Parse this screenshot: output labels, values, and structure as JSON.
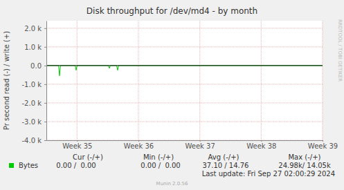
{
  "chart_data": {
    "type": "line",
    "title": "Disk throughput for /dev/md4 - by month",
    "y_label": "Pr second read (-) / write (+)",
    "x": [
      34.5,
      34.7,
      34.714,
      34.73,
      34.97,
      34.985,
      35.0,
      35.51,
      35.526,
      35.54,
      35.645,
      35.661,
      35.675,
      39.0
    ],
    "series": [
      {
        "name": "Bytes",
        "color": "#00cc00",
        "values": [
          0,
          0,
          -550,
          0,
          0,
          -250,
          0,
          0,
          -150,
          0,
          0,
          -250,
          0,
          0
        ]
      }
    ],
    "xlim": [
      34.5,
      39.0
    ],
    "xticks": [
      {
        "value": 35,
        "label": "Week 35"
      },
      {
        "value": 36,
        "label": "Week 36"
      },
      {
        "value": 37,
        "label": "Week 37"
      },
      {
        "value": 38,
        "label": "Week 38"
      },
      {
        "value": 39,
        "label": "Week 39"
      }
    ],
    "ylim": [
      -4000,
      2400
    ],
    "yticks": [
      {
        "value": 2000,
        "label": "2.0 k"
      },
      {
        "value": 1000,
        "label": "1.0 k"
      },
      {
        "value": 0,
        "label": "0.0"
      },
      {
        "value": -1000,
        "label": "-1.0 k"
      },
      {
        "value": -2000,
        "label": "-2.0 k"
      },
      {
        "value": -3000,
        "label": "-3.0 k"
      },
      {
        "value": -4000,
        "label": "-4.0 k"
      }
    ],
    "grid": true,
    "legend": "bottom",
    "stats": {
      "headers": [
        "Cur (-/+)",
        "Min (-/+)",
        "Avg (-/+)",
        "Max (-/+)"
      ],
      "values": [
        "0.00 /  0.00",
        "0.00 /  0.00",
        "37.10 / 14.76",
        "24.98k/ 14.05k"
      ]
    },
    "last_update": "Last update: Fri Sep 27 02:00:29 2024",
    "watermark": "RRDTOOL / TOBI OETIKER",
    "footer": "Munin 2.0.56"
  }
}
